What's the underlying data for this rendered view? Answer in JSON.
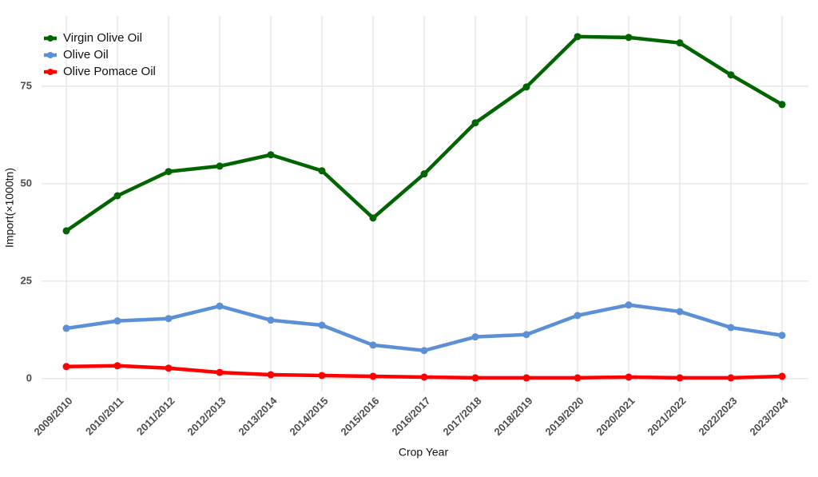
{
  "chart_data": {
    "type": "line",
    "x_label": "Crop Year",
    "y_label": "Import(×1000tn)",
    "categories": [
      "2009/2010",
      "2010/2011",
      "2011/2012",
      "2012/2013",
      "2013/2014",
      "2014/2015",
      "2015/2016",
      "2016/2017",
      "2017/2018",
      "2018/2019",
      "2019/2020",
      "2020/2021",
      "2021/2022",
      "2022/2023",
      "2023/2024"
    ],
    "series": [
      {
        "name": "Virgin Olive Oil",
        "color": "#006400",
        "values": [
          37.9,
          46.9,
          53.1,
          54.5,
          57.4,
          53.3,
          41.2,
          52.5,
          65.6,
          74.8,
          87.7,
          87.5,
          86.1,
          77.9,
          70.3
        ]
      },
      {
        "name": "Olive Oil",
        "color": "#5b8fd6",
        "values": [
          12.9,
          14.8,
          15.4,
          18.6,
          15.0,
          13.7,
          8.6,
          7.2,
          10.7,
          11.3,
          16.2,
          18.9,
          17.2,
          13.1,
          11.1
        ]
      },
      {
        "name": "Olive Pomace Oil",
        "color": "#ff0000",
        "values": [
          3.1,
          3.3,
          2.7,
          1.6,
          1.0,
          0.8,
          0.6,
          0.4,
          0.2,
          0.2,
          0.2,
          0.4,
          0.2,
          0.2,
          0.6
        ]
      }
    ],
    "ylim": [
      -3.3,
      93
    ],
    "yticks": [
      0,
      25,
      50,
      75
    ],
    "grid": true,
    "legend": "top-left"
  }
}
